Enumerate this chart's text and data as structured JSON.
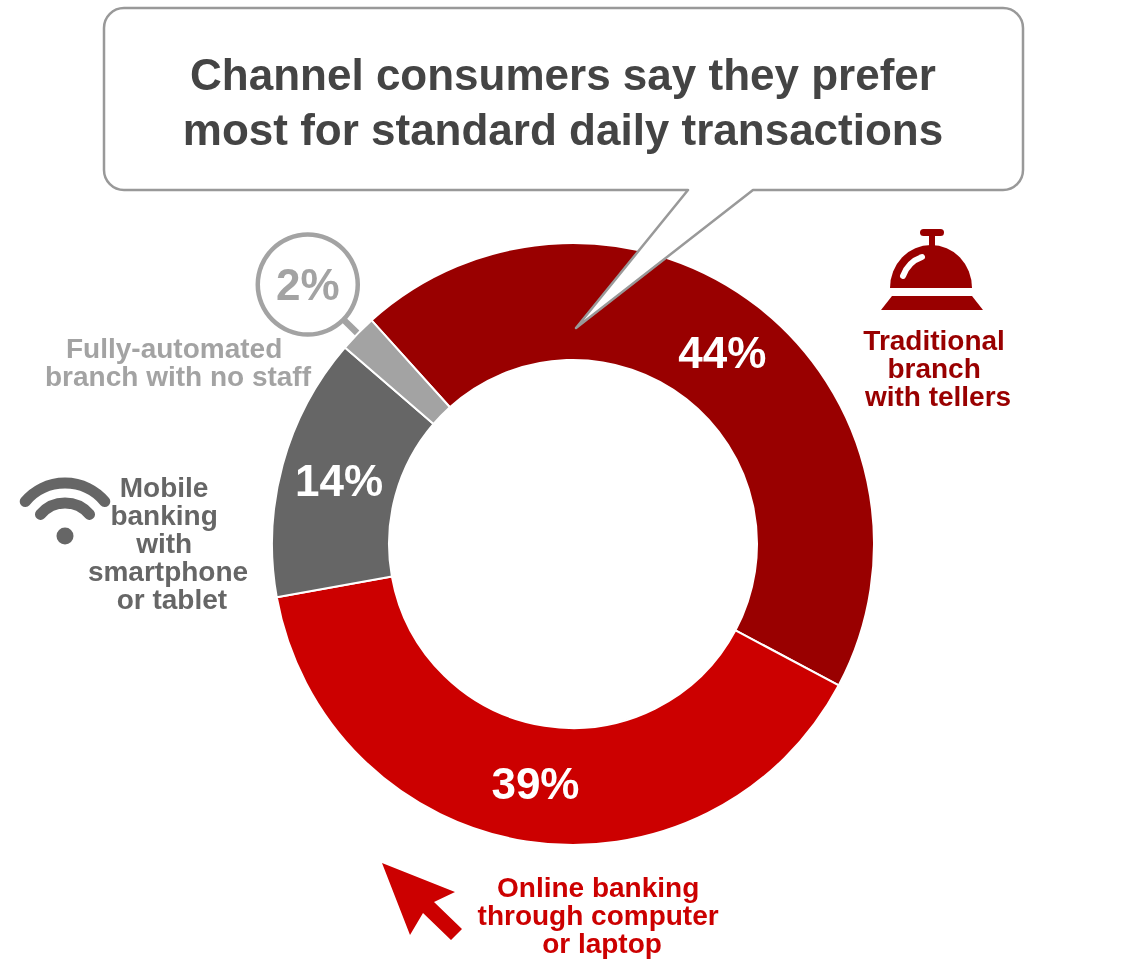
{
  "chart_data": {
    "type": "donut",
    "title": "Channel consumers say they prefer most for standard daily transactions",
    "categories": [
      "Traditional branch with tellers",
      "Online banking through computer or laptop",
      "Mobile banking with smartphone or tablet",
      "Fully-automated branch with no staff"
    ],
    "values": [
      44,
      39,
      14,
      2
    ],
    "colors": [
      "#990000",
      "#cc0000",
      "#666666",
      "#a3a3a3"
    ],
    "value_labels": [
      "44%",
      "39%",
      "14%",
      "2%"
    ]
  }
}
